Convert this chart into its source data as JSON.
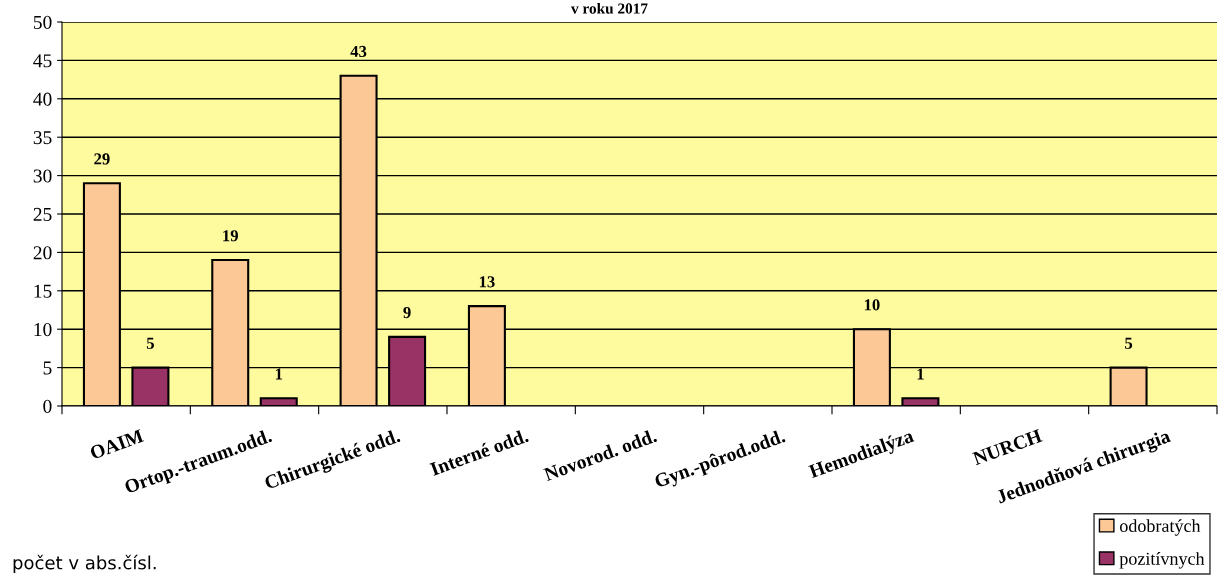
{
  "chart_data": {
    "type": "bar",
    "title": "v roku 2017",
    "categories": [
      "OAIM",
      "Ortop.-traum.odd.",
      "Chirurgické odd.",
      "Interné odd.",
      "Novorod. odd.",
      "Gyn.-pôrod.odd.",
      "Hemodialýza",
      "NURCH",
      "Jednodňová chirurgia"
    ],
    "series": [
      {
        "name": "odobratých",
        "color": "#fcc896",
        "values": [
          29,
          19,
          43,
          13,
          null,
          null,
          10,
          null,
          5
        ]
      },
      {
        "name": "pozitívnych",
        "color": "#993366",
        "values": [
          5,
          1,
          9,
          null,
          null,
          null,
          1,
          null,
          null
        ]
      }
    ],
    "ylim": [
      0,
      50
    ],
    "yticks": [
      0,
      5,
      10,
      15,
      20,
      25,
      30,
      35,
      40,
      45,
      50
    ],
    "grid": "y",
    "legend": "bottom right",
    "data_labels": true,
    "annotations": [
      "počet v abs.čísl."
    ]
  }
}
